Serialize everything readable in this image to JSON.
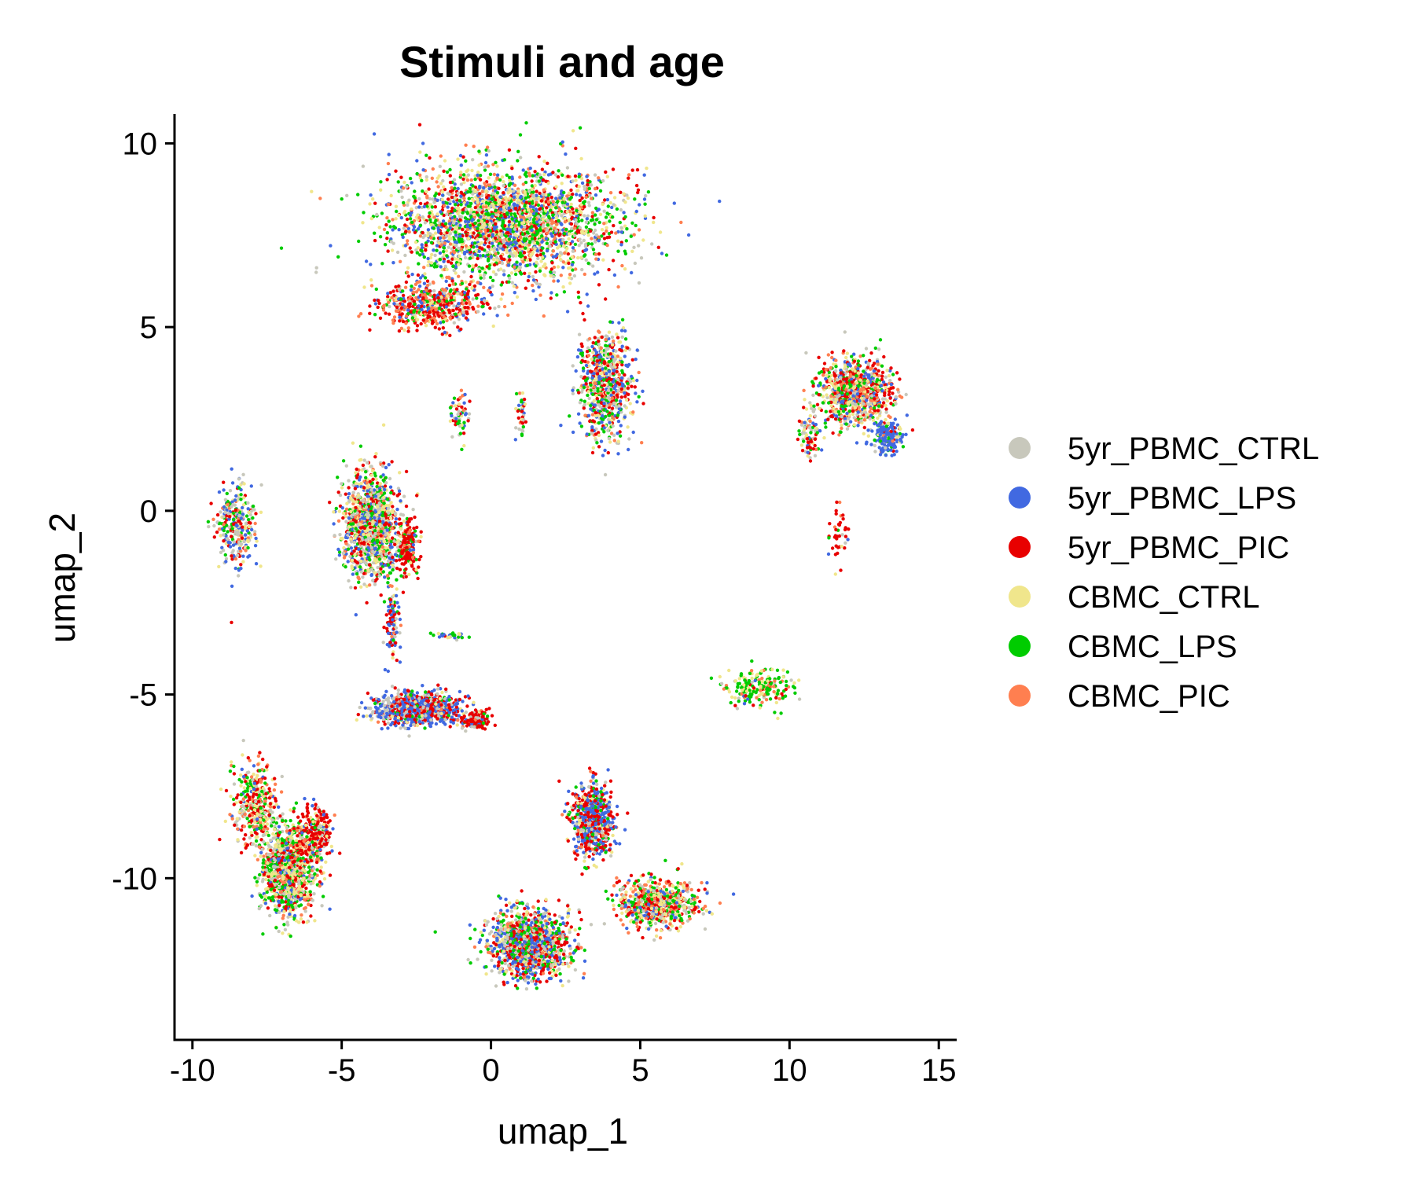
{
  "chart_data": {
    "type": "scatter",
    "title": "Stimuli and age",
    "xlabel": "umap_1",
    "ylabel": "umap_2",
    "xlim": [
      -10.6,
      15.6
    ],
    "ylim": [
      -14.4,
      10.8
    ],
    "x_ticks": [
      -10,
      -5,
      0,
      5,
      10,
      15
    ],
    "x_tick_labels": [
      "-10",
      "-5",
      "0",
      "5",
      "10",
      "15"
    ],
    "y_ticks": [
      -10,
      -5,
      0,
      5,
      10
    ],
    "y_tick_labels": [
      "-10",
      "-5",
      "0",
      "5",
      "10"
    ],
    "grid": false,
    "legend_position": "right",
    "series": [
      {
        "name": "5yr_PBMC_CTRL",
        "color": "#c8c8bc"
      },
      {
        "name": "5yr_PBMC_LPS",
        "color": "#4169e1"
      },
      {
        "name": "5yr_PBMC_PIC",
        "color": "#e80000"
      },
      {
        "name": "CBMC_CTRL",
        "color": "#f0e68c"
      },
      {
        "name": "CBMC_LPS",
        "color": "#00cc00"
      },
      {
        "name": "CBMC_PIC",
        "color": "#ff7f50"
      }
    ],
    "clusters": [
      {
        "center": [
          0.5,
          7.8
        ],
        "spread": [
          3.4,
          1.4
        ],
        "count": 2600,
        "weights": [
          1,
          1.3,
          1,
          1.4,
          1.5,
          0.9
        ]
      },
      {
        "center": [
          -2.0,
          5.6
        ],
        "spread": [
          1.6,
          0.6
        ],
        "count": 500,
        "weights": [
          0.3,
          0.5,
          1.8,
          0.3,
          0.6,
          1.6
        ]
      },
      {
        "center": [
          3.8,
          3.4
        ],
        "spread": [
          0.8,
          1.3
        ],
        "count": 700,
        "weights": [
          1.2,
          1.2,
          1.5,
          0.8,
          1.1,
          0.4
        ]
      },
      {
        "center": [
          -1.0,
          2.6
        ],
        "spread": [
          0.3,
          0.6
        ],
        "count": 60,
        "weights": [
          1,
          0.6,
          1.2,
          0.6,
          0.7,
          0.3
        ]
      },
      {
        "center": [
          1.0,
          2.6
        ],
        "spread": [
          0.15,
          0.7
        ],
        "count": 40,
        "weights": [
          1,
          0.6,
          1.4,
          0.4,
          0.6,
          0.3
        ]
      },
      {
        "center": [
          12.2,
          3.2
        ],
        "spread": [
          1.1,
          0.8
        ],
        "count": 900,
        "weights": [
          0.8,
          0.9,
          1.5,
          1.2,
          1.1,
          1.1
        ]
      },
      {
        "center": [
          13.3,
          2.0
        ],
        "spread": [
          0.4,
          0.4
        ],
        "count": 200,
        "weights": [
          0.2,
          2.5,
          0.4,
          0.3,
          0.4,
          0.2
        ]
      },
      {
        "center": [
          10.7,
          2.2
        ],
        "spread": [
          0.3,
          0.7
        ],
        "count": 90,
        "weights": [
          1.5,
          0.4,
          1.2,
          0.6,
          0.6,
          0.4
        ]
      },
      {
        "center": [
          11.6,
          -0.6
        ],
        "spread": [
          0.3,
          0.8
        ],
        "count": 40,
        "weights": [
          0.1,
          0.3,
          2.5,
          0.1,
          0.2,
          0.1
        ]
      },
      {
        "center": [
          -8.5,
          -0.4
        ],
        "spread": [
          0.6,
          1.0
        ],
        "count": 300,
        "weights": [
          1,
          1.2,
          1,
          0.7,
          0.9,
          0.3
        ]
      },
      {
        "center": [
          -4.0,
          -0.4
        ],
        "spread": [
          0.85,
          1.3
        ],
        "count": 1200,
        "weights": [
          1.4,
          1.1,
          1,
          1.4,
          1.3,
          0.6
        ]
      },
      {
        "center": [
          -2.8,
          -1.0
        ],
        "spread": [
          0.3,
          0.6
        ],
        "count": 200,
        "weights": [
          0.2,
          0.3,
          2.5,
          0.2,
          0.3,
          0.2
        ]
      },
      {
        "center": [
          -3.3,
          -3.0
        ],
        "spread": [
          0.2,
          0.9
        ],
        "count": 100,
        "weights": [
          0.3,
          1.3,
          1.5,
          0.3,
          0.2,
          0.1
        ]
      },
      {
        "center": [
          -1.4,
          -3.4
        ],
        "spread": [
          0.5,
          0.1
        ],
        "count": 30,
        "weights": [
          0.3,
          0.5,
          0.2,
          0.5,
          2,
          0.1
        ]
      },
      {
        "center": [
          -2.5,
          -5.4
        ],
        "spread": [
          1.3,
          0.4
        ],
        "count": 900,
        "weights": [
          1.2,
          2.2,
          1.3,
          0.4,
          0.2,
          0.2
        ]
      },
      {
        "center": [
          -0.5,
          -5.7
        ],
        "spread": [
          0.4,
          0.2
        ],
        "count": 150,
        "weights": [
          0.3,
          0.3,
          2.5,
          0.2,
          0.2,
          0.2
        ]
      },
      {
        "center": [
          -7.9,
          -8.0
        ],
        "spread": [
          0.7,
          1.0
        ],
        "count": 350,
        "weights": [
          0.7,
          0.3,
          1.4,
          1,
          1.1,
          0.8
        ]
      },
      {
        "center": [
          -6.8,
          -9.8
        ],
        "spread": [
          0.8,
          1.1
        ],
        "count": 1100,
        "weights": [
          0.9,
          0.6,
          1,
          1.4,
          1.4,
          0.6
        ]
      },
      {
        "center": [
          -5.9,
          -8.8
        ],
        "spread": [
          0.5,
          0.7
        ],
        "count": 250,
        "weights": [
          0.3,
          0.3,
          2.5,
          0.4,
          0.3,
          0.3
        ]
      },
      {
        "center": [
          3.4,
          -8.4
        ],
        "spread": [
          0.6,
          0.9
        ],
        "count": 700,
        "weights": [
          0.6,
          1.8,
          1.8,
          0.4,
          0.6,
          0.2
        ]
      },
      {
        "center": [
          1.3,
          -11.8
        ],
        "spread": [
          1.2,
          0.8
        ],
        "count": 1300,
        "weights": [
          1.2,
          1.5,
          1.5,
          0.9,
          1.1,
          0.5
        ]
      },
      {
        "center": [
          5.6,
          -10.7
        ],
        "spread": [
          1.2,
          0.6
        ],
        "count": 700,
        "weights": [
          0.8,
          0.6,
          1.4,
          1.3,
          1.4,
          1.1
        ]
      },
      {
        "center": [
          9.0,
          -4.8
        ],
        "spread": [
          1.0,
          0.5
        ],
        "count": 200,
        "weights": [
          0.3,
          0.2,
          0.3,
          1.3,
          2.2,
          0.6
        ]
      }
    ]
  }
}
